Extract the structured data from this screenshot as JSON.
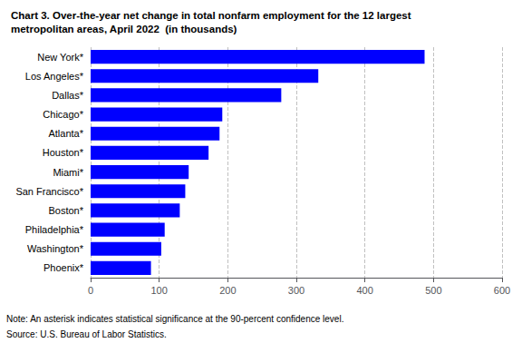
{
  "chart_data": {
    "type": "bar",
    "title": "Chart 3. Over-the-year net change in total nonfarm employment for the 12 largest\nmetropolitan areas, April 2022  (in thousands)",
    "categories": [
      "Phoenix*",
      "Washington*",
      "Philadelphia*",
      "Boston*",
      "San Francisco*",
      "Miami*",
      "Houston*",
      "Atlanta*",
      "Chicago*",
      "Dallas*",
      "Los Angeles*",
      "New York*"
    ],
    "values": [
      88,
      103,
      108,
      130,
      138,
      143,
      172,
      188,
      192,
      278,
      332,
      487
    ],
    "color": "#0000ff",
    "orientation": "horizontal",
    "xlim": [
      0,
      600
    ],
    "xticks": [
      0,
      100,
      200,
      300,
      400,
      500,
      600
    ],
    "grid": true,
    "annotations": [
      "Note: An asterisk indicates statistical significance at the 90-percent confidence level.",
      "Source: U.S. Bureau of Labor Statistics."
    ]
  }
}
